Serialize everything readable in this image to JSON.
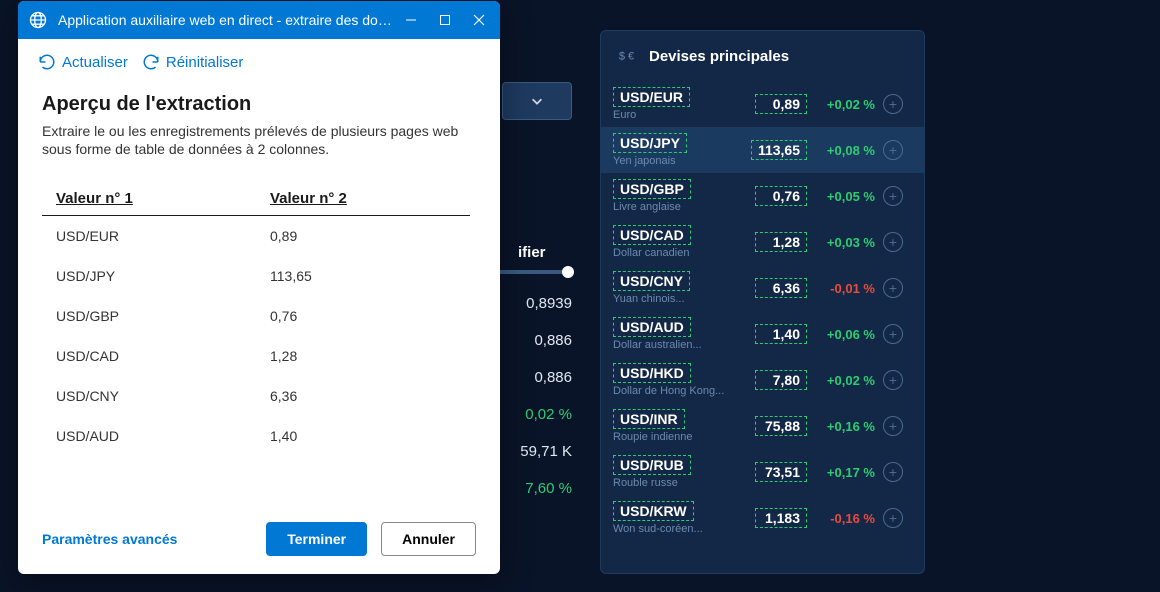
{
  "dialog": {
    "title": "Application auxiliaire web en direct - extraire des données...",
    "toolbar": {
      "refresh": "Actualiser",
      "reset": "Réinitialiser"
    },
    "heading": "Aperçu de l'extraction",
    "description": "Extraire le ou les enregistrements prélevés de plusieurs pages web sous forme de table de données à 2 colonnes.",
    "columns": [
      "Valeur n° 1",
      "Valeur n° 2"
    ],
    "rows": [
      [
        "USD/EUR",
        "0,89"
      ],
      [
        "USD/JPY",
        "113,65"
      ],
      [
        "USD/GBP",
        "0,76"
      ],
      [
        "USD/CAD",
        "1,28"
      ],
      [
        "USD/CNY",
        "6,36"
      ],
      [
        "USD/AUD",
        "1,40"
      ]
    ],
    "footer": {
      "advanced": "Paramètres avancés",
      "finish": "Terminer",
      "cancel": "Annuler"
    }
  },
  "bg": {
    "label": "ifier",
    "values": [
      "0,8939",
      "0,886",
      "0,886",
      "0,02 %",
      "59,71 K",
      "7,60 %"
    ]
  },
  "panel": {
    "title": "Devises principales",
    "rows": [
      {
        "pair": "USD/EUR",
        "sub": "Euro",
        "rate": "0,89",
        "chg": "+0,02 %",
        "dir": "pos"
      },
      {
        "pair": "USD/JPY",
        "sub": "Yen japonais",
        "rate": "113,65",
        "chg": "+0,08 %",
        "dir": "pos",
        "highlight": true
      },
      {
        "pair": "USD/GBP",
        "sub": "Livre anglaise",
        "rate": "0,76",
        "chg": "+0,05 %",
        "dir": "pos"
      },
      {
        "pair": "USD/CAD",
        "sub": "Dollar canadien",
        "rate": "1,28",
        "chg": "+0,03 %",
        "dir": "pos"
      },
      {
        "pair": "USD/CNY",
        "sub": "Yuan chinois...",
        "rate": "6,36",
        "chg": "-0,01 %",
        "dir": "neg"
      },
      {
        "pair": "USD/AUD",
        "sub": "Dollar australien...",
        "rate": "1,40",
        "chg": "+0,06 %",
        "dir": "pos"
      },
      {
        "pair": "USD/HKD",
        "sub": "Dollar de Hong Kong...",
        "rate": "7,80",
        "chg": "+0,02 %",
        "dir": "pos"
      },
      {
        "pair": "USD/INR",
        "sub": "Roupie indienne",
        "rate": "75,88",
        "chg": "+0,16 %",
        "dir": "pos"
      },
      {
        "pair": "USD/RUB",
        "sub": "Rouble russe",
        "rate": "73,51",
        "chg": "+0,17 %",
        "dir": "pos"
      },
      {
        "pair": "USD/KRW",
        "sub": "Won sud-coréen...",
        "rate": "1,183",
        "chg": "-0,16 %",
        "dir": "neg"
      }
    ]
  },
  "colors": {
    "accent": "#0078d4",
    "pos": "#2ecc71",
    "neg": "#e74c3c",
    "panel_bg": "#132846",
    "body_bg": "#0a1428"
  }
}
